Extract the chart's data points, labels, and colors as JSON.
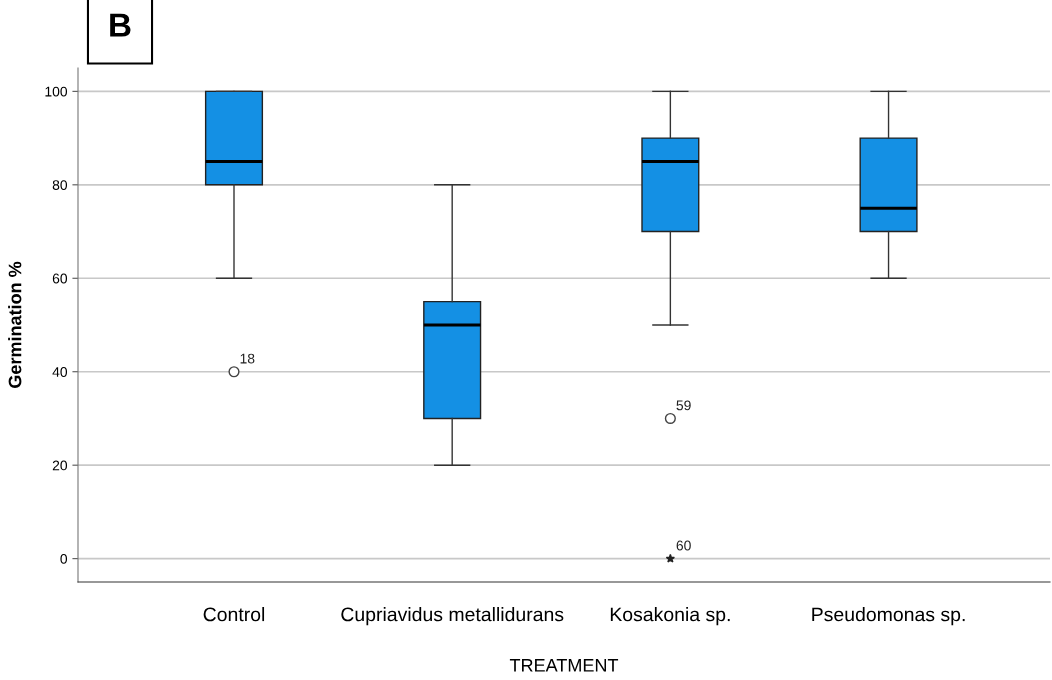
{
  "chart_data": {
    "type": "box",
    "categories": [
      "Control",
      "Cupriavidus metallidurans",
      "Kosakonia sp.",
      "Pseudomonas sp."
    ],
    "boxes": [
      {
        "low": 60,
        "q1": 80,
        "median": 85,
        "q3": 100,
        "high": 100,
        "outliers": [
          40
        ]
      },
      {
        "low": 20,
        "q1": 30,
        "median": 50,
        "q3": 55,
        "high": 80
      },
      {
        "low": 50,
        "q1": 70,
        "median": 85,
        "q3": 90,
        "high": 100,
        "outliers": [
          30,
          0
        ]
      },
      {
        "low": 60,
        "q1": 70,
        "median": 75,
        "q3": 90,
        "high": 100
      }
    ],
    "color": "#1490e4",
    "xlabel": "TREATMENT",
    "ylabel": "Germination %",
    "ylim": [
      -5,
      105
    ],
    "yticks": [
      0,
      20,
      40,
      60,
      80,
      100
    ],
    "grid": "y",
    "annotations": [
      "B",
      "18",
      "59",
      "60"
    ]
  }
}
